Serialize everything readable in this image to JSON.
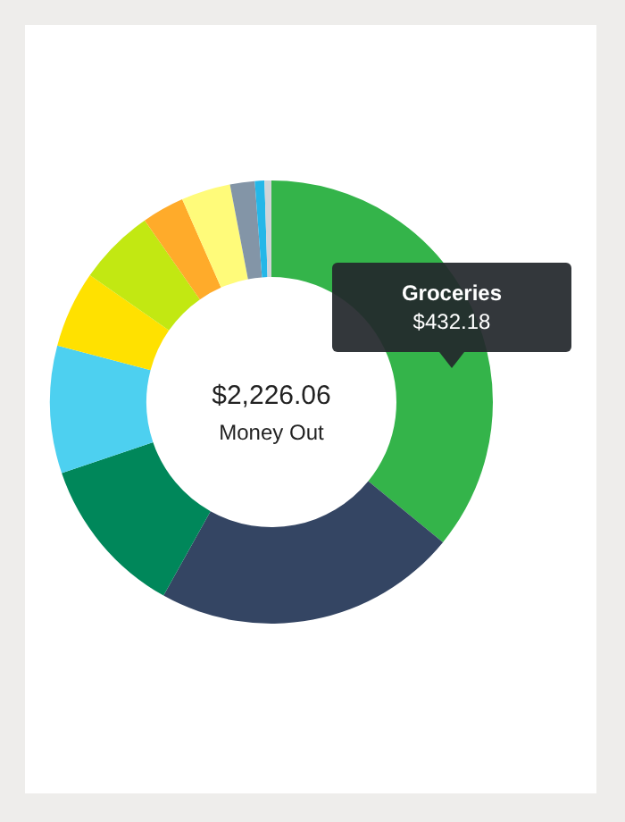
{
  "chart_data": {
    "type": "donut",
    "categories": [
      "Groceries",
      null,
      null,
      null,
      null,
      null,
      null,
      null,
      null,
      null,
      null
    ],
    "values": [
      35.9,
      22.2,
      11.7,
      9.3,
      5.6,
      5.6,
      3.1,
      3.6,
      1.8,
      0.7,
      0.5
    ],
    "colors": [
      "#34b44a",
      "#344563",
      "#00875a",
      "#4dd0f0",
      "#ffe100",
      "#c2e812",
      "#ffab2a",
      "#fffb7a",
      "#8395a7",
      "#25b7e8",
      "#d0d4d8"
    ],
    "annotations": [
      "$2,226.06",
      "Money Out",
      "$432.18"
    ]
  }
}
